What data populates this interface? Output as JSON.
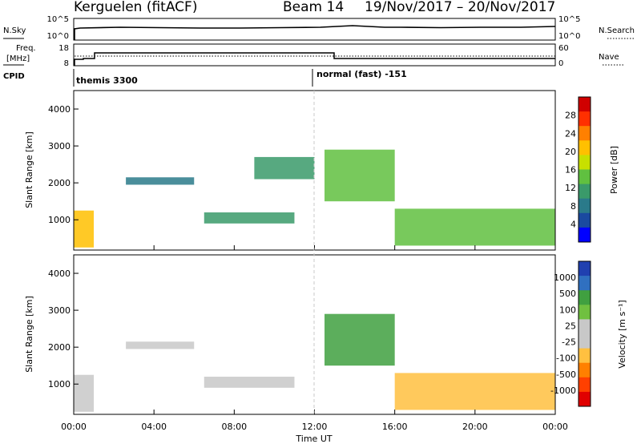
{
  "header": {
    "station": "Kerguelen (fitACF)",
    "beam": "Beam 14",
    "date_range": "19/Nov/2017 – 20/Nov/2017"
  },
  "noise_panel": {
    "left_label": "N.Sky",
    "right_label": "N.Search",
    "left_ticks": [
      "10^5",
      "10^0"
    ],
    "right_ticks": [
      "10^5",
      "10^0"
    ]
  },
  "freq_panel": {
    "left_label_1": "Freq.",
    "left_label_2": "[MHz]",
    "right_label": "Nave",
    "left_ticks": [
      "18",
      "8"
    ],
    "right_ticks": [
      "60",
      "0"
    ],
    "cpid_label": "CPID"
  },
  "cpid": {
    "mode_1": "themis 3300",
    "mode_2": "normal (fast) -151"
  },
  "chart_data": [
    {
      "type": "heatmap",
      "title": "Power",
      "ylabel": "Slant Range [km]",
      "yticks": [
        "4000",
        "3000",
        "2000",
        "1000"
      ],
      "ylim": [
        180,
        4500
      ],
      "xlim": [
        0,
        24
      ],
      "colorbar_label": "Power [dB]",
      "colorbar_ticks": [
        "28",
        "24",
        "20",
        "16",
        "12",
        "8",
        "4"
      ],
      "colorbar_colors": [
        "#d00000",
        "#ff3000",
        "#ff8000",
        "#ffc000",
        "#c8e000",
        "#60c040",
        "#3a9a6a",
        "#2a7a8a",
        "#1a4aa0",
        "#0000ff"
      ],
      "echo_regions": [
        {
          "t_start": 0.0,
          "t_end": 1.0,
          "r_min": 250,
          "r_max": 1250,
          "level_db": 22
        },
        {
          "t_start": 2.6,
          "t_end": 6.0,
          "r_min": 1950,
          "r_max": 2150,
          "level_db": 10
        },
        {
          "t_start": 6.5,
          "t_end": 11.0,
          "r_min": 900,
          "r_max": 1200,
          "level_db": 12
        },
        {
          "t_start": 9.0,
          "t_end": 12.0,
          "r_min": 2100,
          "r_max": 2700,
          "level_db": 12
        },
        {
          "t_start": 12.5,
          "t_end": 16.0,
          "r_min": 1500,
          "r_max": 2900,
          "level_db": 16
        },
        {
          "t_start": 16.0,
          "t_end": 24.0,
          "r_min": 300,
          "r_max": 1300,
          "level_db": 18
        }
      ]
    },
    {
      "type": "heatmap",
      "title": "Velocity",
      "ylabel": "Slant Range [km]",
      "xlabel": "Time UT",
      "yticks": [
        "4000",
        "3000",
        "2000",
        "1000"
      ],
      "ylim": [
        180,
        4500
      ],
      "xlim": [
        0,
        24
      ],
      "xticks": [
        "00:00",
        "04:00",
        "08:00",
        "12:00",
        "16:00",
        "20:00",
        "00:00"
      ],
      "colorbar_label": "Velocity [m s⁻¹]",
      "colorbar_ticks": [
        "1000",
        "500",
        "100",
        "25",
        "-25",
        "-100",
        "-500",
        "-1000"
      ],
      "colorbar_colors": [
        "#2040b0",
        "#3070c0",
        "#40a040",
        "#70c040",
        "#c8c8c8",
        "#c8c8c8",
        "#ffc040",
        "#ff8000",
        "#ff4000",
        "#e00000"
      ],
      "echo_regions": [
        {
          "t_start": 0.0,
          "t_end": 1.0,
          "r_min": 250,
          "r_max": 1250,
          "velocity": 0
        },
        {
          "t_start": 2.6,
          "t_end": 6.0,
          "r_min": 1950,
          "r_max": 2150,
          "velocity": 0
        },
        {
          "t_start": 6.5,
          "t_end": 11.0,
          "r_min": 900,
          "r_max": 1200,
          "velocity": 0
        },
        {
          "t_start": 12.5,
          "t_end": 16.0,
          "r_min": 1500,
          "r_max": 2900,
          "velocity": 100
        },
        {
          "t_start": 16.0,
          "t_end": 24.0,
          "r_min": 300,
          "r_max": 1300,
          "velocity": -25
        }
      ]
    }
  ]
}
